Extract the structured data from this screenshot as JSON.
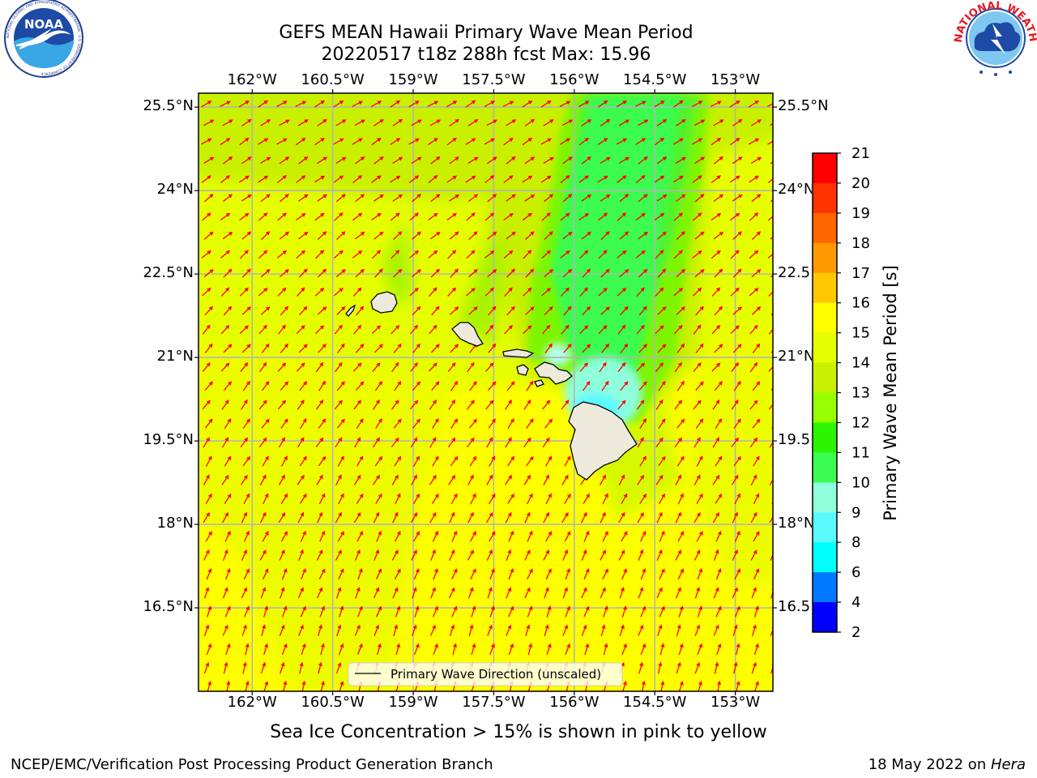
{
  "header": {
    "title_line1": "GEFS MEAN Hawaii Primary Wave Mean Period",
    "title_line2": "20220517 t18z 288h fcst   Max: 15.96"
  },
  "logos": {
    "left": {
      "text": "NOAA",
      "ring_text": "NATIONAL OCEANIC AND ATMOSPHERIC ADMINISTRATION · U.S. DEPARTMENT OF COMMERCE"
    },
    "right": {
      "ring_text": "NATIONAL WEATHER SERVICE"
    }
  },
  "map": {
    "lon_ticks": [
      "162°W",
      "160.5°W",
      "159°W",
      "157.5°W",
      "156°W",
      "154.5°W",
      "153°W"
    ],
    "lat_ticks": [
      "25.5°N",
      "24°N",
      "22.5°N",
      "21°N",
      "19.5°N",
      "18°N",
      "16.5°N"
    ],
    "lon_values": [
      -162,
      -160.5,
      -159,
      -157.5,
      -156,
      -154.5,
      -153
    ],
    "lat_values": [
      25.5,
      24,
      22.5,
      21,
      19.5,
      18,
      16.5
    ],
    "lon_range": [
      -163,
      -152.3
    ],
    "lat_range": [
      15,
      25.75
    ],
    "grid": true,
    "legend": {
      "label": "Primary Wave Direction (unscaled)",
      "placement": "bottom-center"
    },
    "arrow_color": "#ff0000",
    "land_color": "#eeeadb",
    "grid_color": "#b4b4b4"
  },
  "colorbar": {
    "label": "Primary Wave Mean Period [s]",
    "ticks": [
      "21",
      "20",
      "19",
      "18",
      "17",
      "16",
      "15",
      "14",
      "13",
      "12",
      "11",
      "10",
      "9",
      "8",
      "6",
      "4",
      "2"
    ],
    "colors": [
      "#ff0000",
      "#ff3300",
      "#ff6600",
      "#ff9900",
      "#ffc800",
      "#ffff00",
      "#e6ff00",
      "#c8f000",
      "#96ff00",
      "#2df400",
      "#3bfc50",
      "#8fffdc",
      "#5afaff",
      "#00ffff",
      "#0078ff",
      "#0000ff"
    ]
  },
  "notes": {
    "sea_ice": "Sea Ice Concentration > 15% is shown in pink to yellow"
  },
  "footer": {
    "left": "NCEP/EMC/Verification Post Processing Product Generation Branch",
    "right_prefix": "18 May 2022 on ",
    "right_machine": "Hera"
  }
}
